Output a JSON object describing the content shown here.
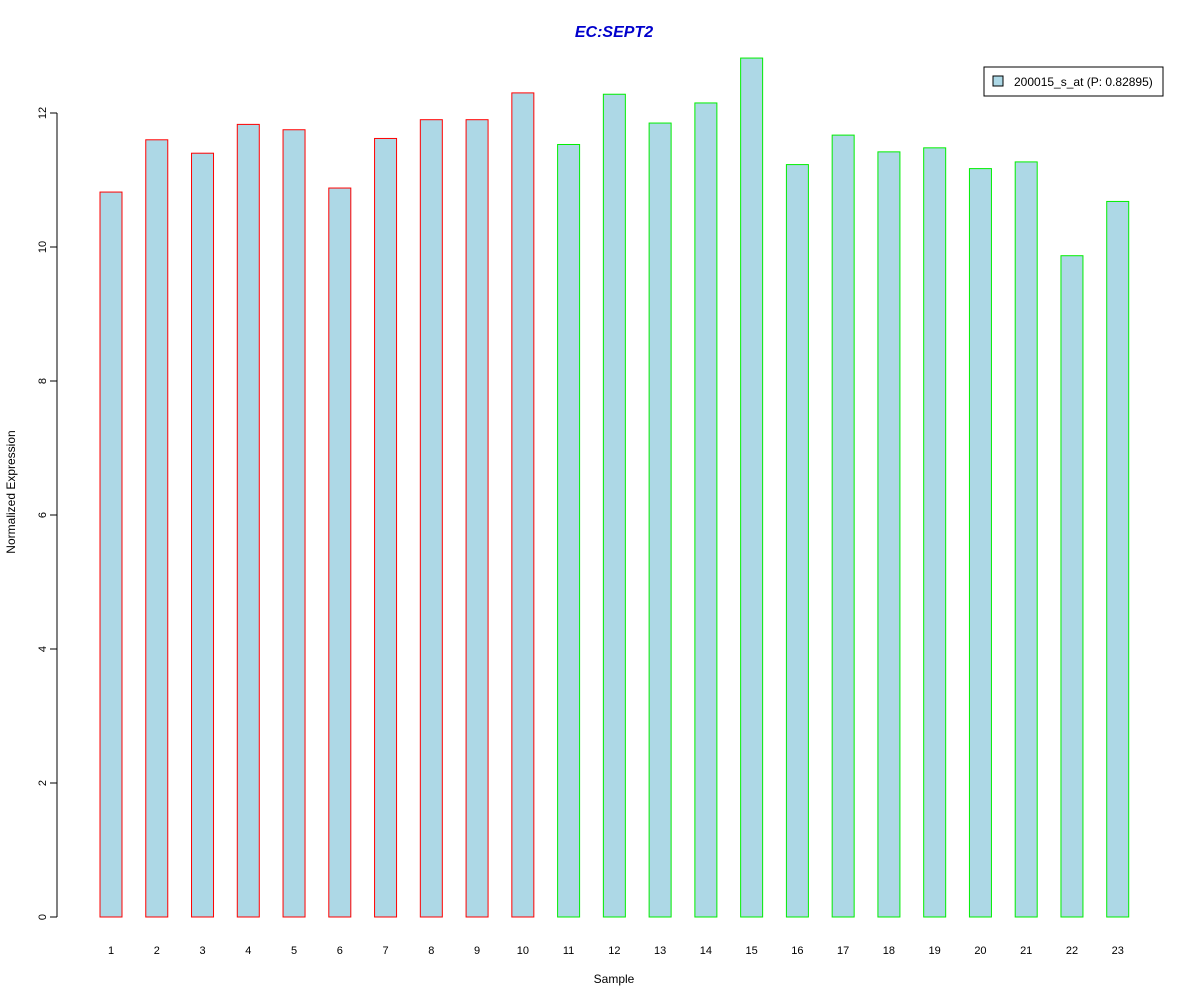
{
  "chart_data": {
    "type": "bar",
    "title": "EC:SEPT2",
    "xlabel": "Sample",
    "ylabel": "Normalized Expression",
    "categories": [
      "1",
      "2",
      "3",
      "4",
      "5",
      "6",
      "7",
      "8",
      "9",
      "10",
      "11",
      "12",
      "13",
      "14",
      "15",
      "16",
      "17",
      "18",
      "19",
      "20",
      "21",
      "22",
      "23"
    ],
    "series": [
      {
        "name": "200015_s_at (P: 0.82895)",
        "values": [
          10.82,
          11.6,
          11.4,
          11.83,
          11.75,
          10.88,
          11.62,
          11.9,
          11.9,
          12.3,
          11.53,
          12.28,
          11.85,
          12.15,
          12.82,
          11.23,
          11.67,
          11.42,
          11.48,
          11.17,
          11.27,
          9.87,
          10.68
        ]
      }
    ],
    "group_outline": [
      "red",
      "red",
      "red",
      "red",
      "red",
      "red",
      "red",
      "red",
      "red",
      "red",
      "green",
      "green",
      "green",
      "green",
      "green",
      "green",
      "green",
      "green",
      "green",
      "green",
      "green",
      "green",
      "green"
    ],
    "yticks": [
      0,
      2,
      4,
      6,
      8,
      10,
      12
    ],
    "ylim": [
      0,
      13
    ],
    "grid": false,
    "legend_position": "top-right",
    "colors": {
      "bar_fill": "#add8e6",
      "outline_group_a": "#ff0000",
      "outline_group_b": "#00ee00",
      "title": "#0000cc",
      "axis": "#000000"
    }
  }
}
